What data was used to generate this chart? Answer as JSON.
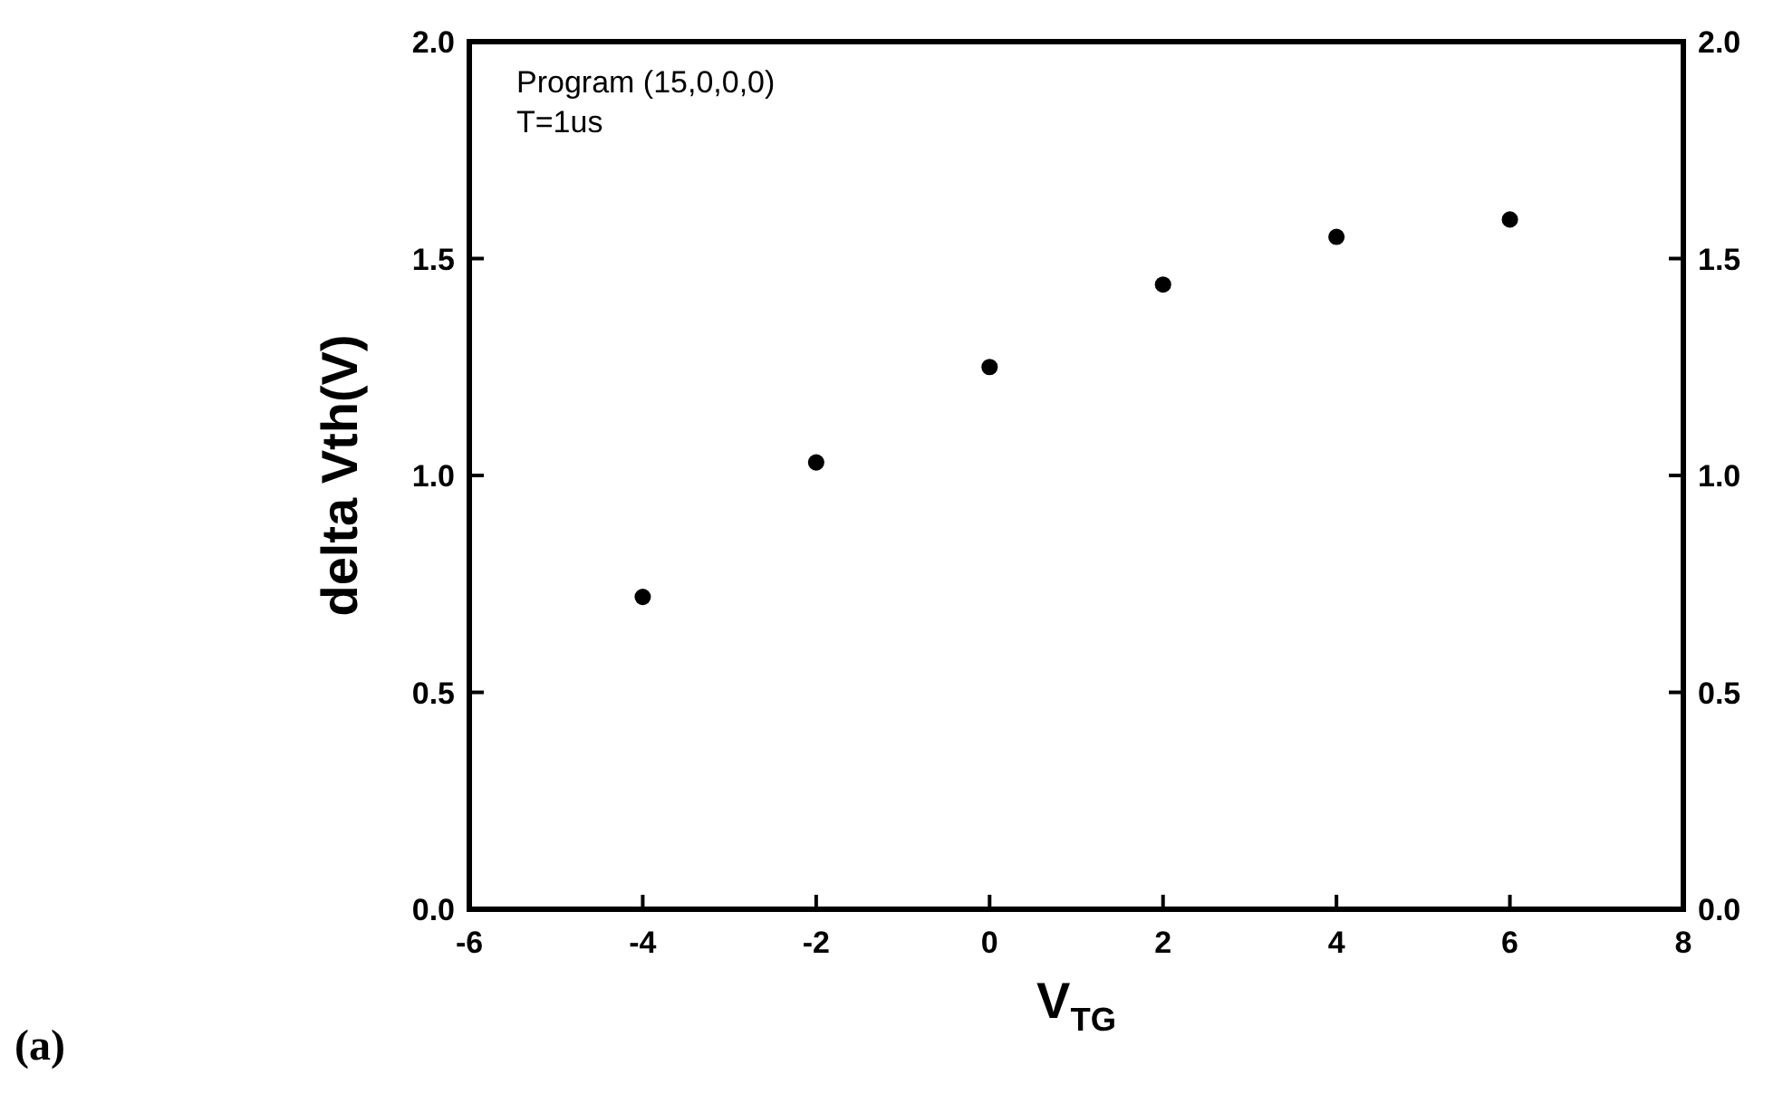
{
  "chart_data": {
    "type": "scatter",
    "xlabel": "V$_{TG}$",
    "ylabel": "delta Vth(V)",
    "x": [
      -4,
      -2,
      0,
      2,
      4,
      6
    ],
    "series": [
      {
        "color": "#000000",
        "values": [
          0.72,
          1.03,
          1.25,
          1.44,
          1.55,
          1.59
        ]
      }
    ],
    "xlim": [
      -6,
      8
    ],
    "xticks": [
      -6,
      -4,
      -2,
      0,
      2,
      4,
      6,
      8
    ],
    "ylim": [
      0,
      2
    ],
    "yticks": [
      {
        "value": 0,
        "label": "0.0"
      },
      {
        "value": 0.5,
        "label": "0.5"
      },
      {
        "value": 1,
        "label": "1.0"
      },
      {
        "value": 1.5,
        "label": "1.5"
      },
      {
        "value": 2,
        "label": "2.0"
      }
    ],
    "y2lim": [
      0,
      2
    ],
    "y2ticks": [
      {
        "value": 0,
        "label": "0.0"
      },
      {
        "value": 0.5,
        "label": "0.5"
      },
      {
        "value": 1,
        "label": "1.0"
      },
      {
        "value": 1.5,
        "label": "1.5"
      },
      {
        "value": 2,
        "label": "2.0"
      }
    ],
    "marker": "circle",
    "annotations": [
      "Program (15,0,0,0)",
      "T=1us",
      "(a)"
    ]
  }
}
